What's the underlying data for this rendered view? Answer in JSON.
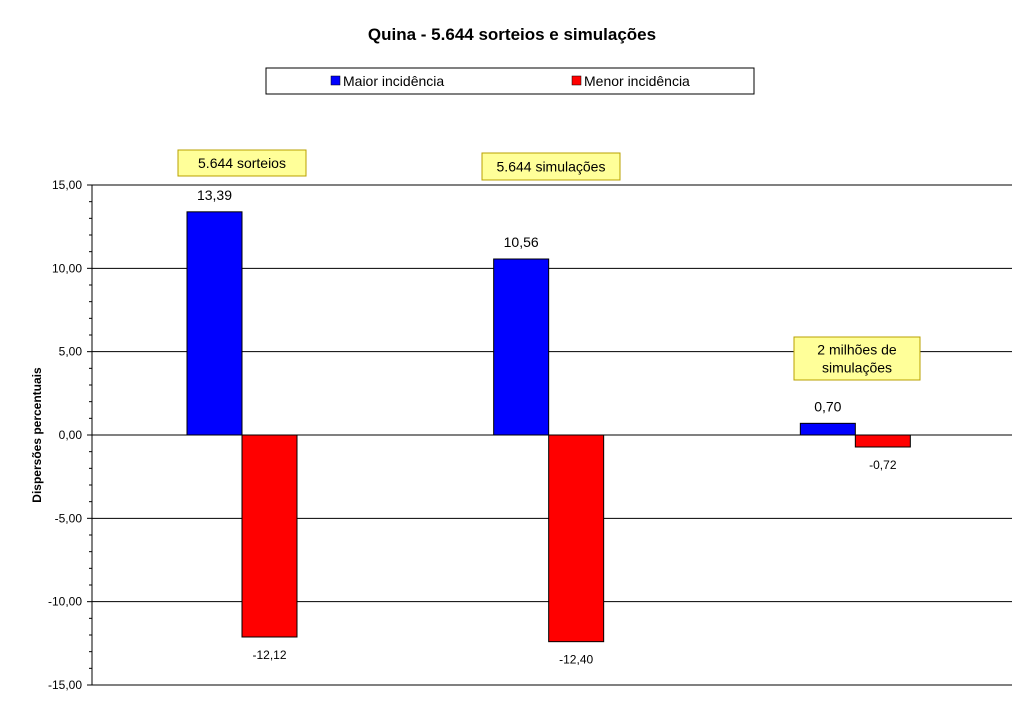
{
  "chart_data": {
    "type": "bar",
    "title": "Quina - 5.644 sorteios e simulações",
    "ylabel": "Dispersões percentuais",
    "xlabel": "",
    "ylim": [
      -15,
      15
    ],
    "yticks": [
      15,
      10,
      5,
      0,
      -5,
      -10,
      -15
    ],
    "ytick_labels": [
      "15,00",
      "10,00",
      "5,00",
      "0,00",
      "-5,00",
      "-10,00",
      "-15,00"
    ],
    "grid": "horizontal",
    "legend_position": "top",
    "groups": [
      {
        "annotation": "5.644 sorteios",
        "values": [
          13.39,
          -12.12
        ],
        "labels": [
          "13,39",
          "-12,12"
        ]
      },
      {
        "annotation": "5.644 simulações",
        "values": [
          10.56,
          -12.4
        ],
        "labels": [
          "10,56",
          "-12,40"
        ]
      },
      {
        "annotation": "2 milhões de simulações",
        "annotation_lines": [
          "2 milhões de",
          "simulações"
        ],
        "values": [
          0.7,
          -0.72
        ],
        "labels": [
          "0,70",
          "-0,72"
        ]
      }
    ],
    "series": [
      {
        "name": "Maior incidência",
        "color": "#0000ff"
      },
      {
        "name": "Menor incidência",
        "color": "#ff0000"
      }
    ]
  }
}
